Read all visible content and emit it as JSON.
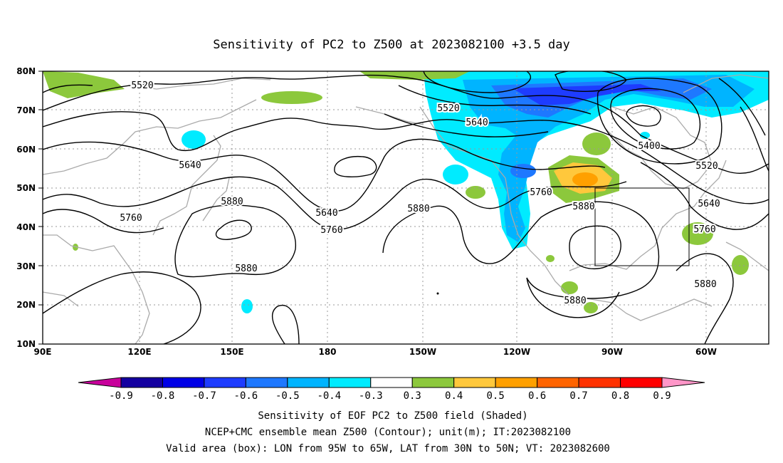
{
  "title": "Sensitivity of PC2 to Z500 at 2023082100 +3.5 day",
  "lat_labels": [
    "80N",
    "70N",
    "60N",
    "50N",
    "40N",
    "30N",
    "20N",
    "10N"
  ],
  "lon_labels": [
    "90E",
    "120E",
    "150E",
    "180",
    "150W",
    "120W",
    "90W",
    "60W"
  ],
  "contour_labels": [
    {
      "text": "5520"
    },
    {
      "text": "5640"
    },
    {
      "text": "5760"
    },
    {
      "text": "5880"
    },
    {
      "text": "5640"
    },
    {
      "text": "5760"
    },
    {
      "text": "5880"
    },
    {
      "text": "5880"
    },
    {
      "text": "5520"
    },
    {
      "text": "5640"
    },
    {
      "text": "5760"
    },
    {
      "text": "5880"
    },
    {
      "text": "5400"
    },
    {
      "text": "5520"
    },
    {
      "text": "5640"
    },
    {
      "text": "5760"
    },
    {
      "text": "5880"
    },
    {
      "text": "5880"
    }
  ],
  "colorbar": {
    "colors": [
      "#c8009b",
      "#1400a0",
      "#0000e6",
      "#1e3cff",
      "#1e78ff",
      "#00b4ff",
      "#00ebff",
      "#ffffff",
      "#8cc83c",
      "#ffc83c",
      "#ffa000",
      "#ff6400",
      "#ff3200",
      "#ff0000",
      "#ff96c8"
    ],
    "tick_labels": [
      "-0.9",
      "-0.8",
      "-0.7",
      "-0.6",
      "-0.5",
      "-0.4",
      "-0.3",
      "0.3",
      "0.4",
      "0.5",
      "0.6",
      "0.7",
      "0.8",
      "0.9"
    ]
  },
  "caption": {
    "line1": "Sensitivity of EOF PC2 to Z500 field (Shaded)",
    "line2": "NCEP+CMC ensemble mean Z500 (Contour); unit(m); IT:2023082100",
    "line3": "Valid area (box): LON from 95W to 65W, LAT from 30N to 50N; VT: 2023082600"
  }
}
